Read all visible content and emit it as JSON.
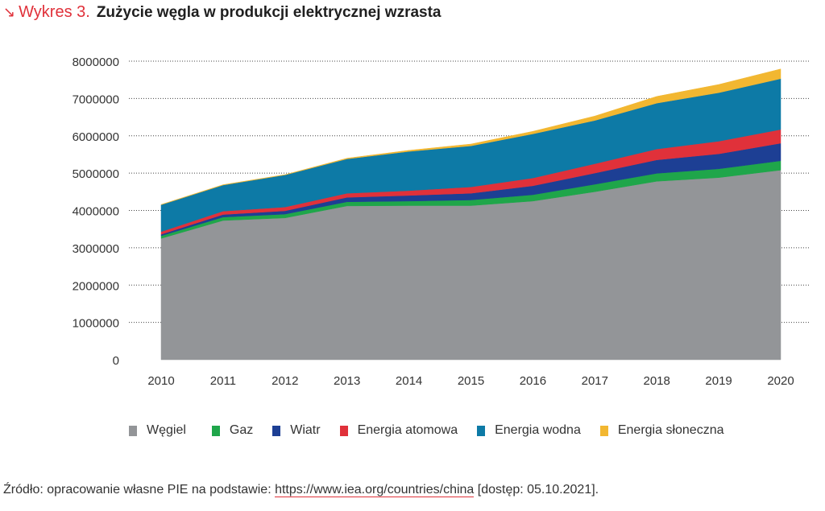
{
  "header": {
    "arrow": "↘",
    "label": "Wykres 3.",
    "title": "Zużycie węgla w produkcji elektrycznej wzrasta"
  },
  "source": {
    "prefix": "Źródło: opracowanie własne PIE na podstawie: ",
    "link": "https://www.iea.org/countries/china",
    "suffix": " [dostęp: 05.10.2021]."
  },
  "chart_data": {
    "type": "area",
    "stacked": true,
    "title": "Zużycie węgla w produkcji elektrycznej wzrasta",
    "xlabel": "",
    "ylabel": "",
    "x": [
      "2010",
      "2011",
      "2012",
      "2013",
      "2014",
      "2015",
      "2016",
      "2017",
      "2018",
      "2019",
      "2020"
    ],
    "yticks": [
      "0",
      "1000000",
      "2000000",
      "3000000",
      "4000000",
      "5000000",
      "6000000",
      "7000000",
      "8000000"
    ],
    "ylim": [
      0,
      8000000
    ],
    "grid": true,
    "legend_position": "bottom",
    "series": [
      {
        "name": "Węgiel",
        "color": "#939598",
        "values": [
          3250000,
          3730000,
          3800000,
          4120000,
          4130000,
          4130000,
          4250000,
          4500000,
          4780000,
          4880000,
          5080000
        ]
      },
      {
        "name": "Gaz",
        "color": "#1fa64a",
        "values": [
          70000,
          90000,
          100000,
          110000,
          120000,
          150000,
          170000,
          200000,
          215000,
          235000,
          250000
        ]
      },
      {
        "name": "Wiatr",
        "color": "#1d3f94",
        "values": [
          40000,
          70000,
          90000,
          120000,
          150000,
          180000,
          240000,
          300000,
          360000,
          400000,
          470000
        ]
      },
      {
        "name": "Energia atomowa",
        "color": "#e0313a",
        "values": [
          70000,
          90000,
          100000,
          110000,
          130000,
          170000,
          210000,
          250000,
          290000,
          340000,
          370000
        ]
      },
      {
        "name": "Energia wodna",
        "color": "#0d7aa6",
        "values": [
          720000,
          700000,
          860000,
          920000,
          1050000,
          1100000,
          1180000,
          1160000,
          1230000,
          1300000,
          1360000
        ]
      },
      {
        "name": "Energia słoneczna",
        "color": "#f2b731",
        "values": [
          10000,
          10000,
          10000,
          20000,
          30000,
          50000,
          70000,
          120000,
          180000,
          220000,
          260000
        ]
      }
    ]
  }
}
